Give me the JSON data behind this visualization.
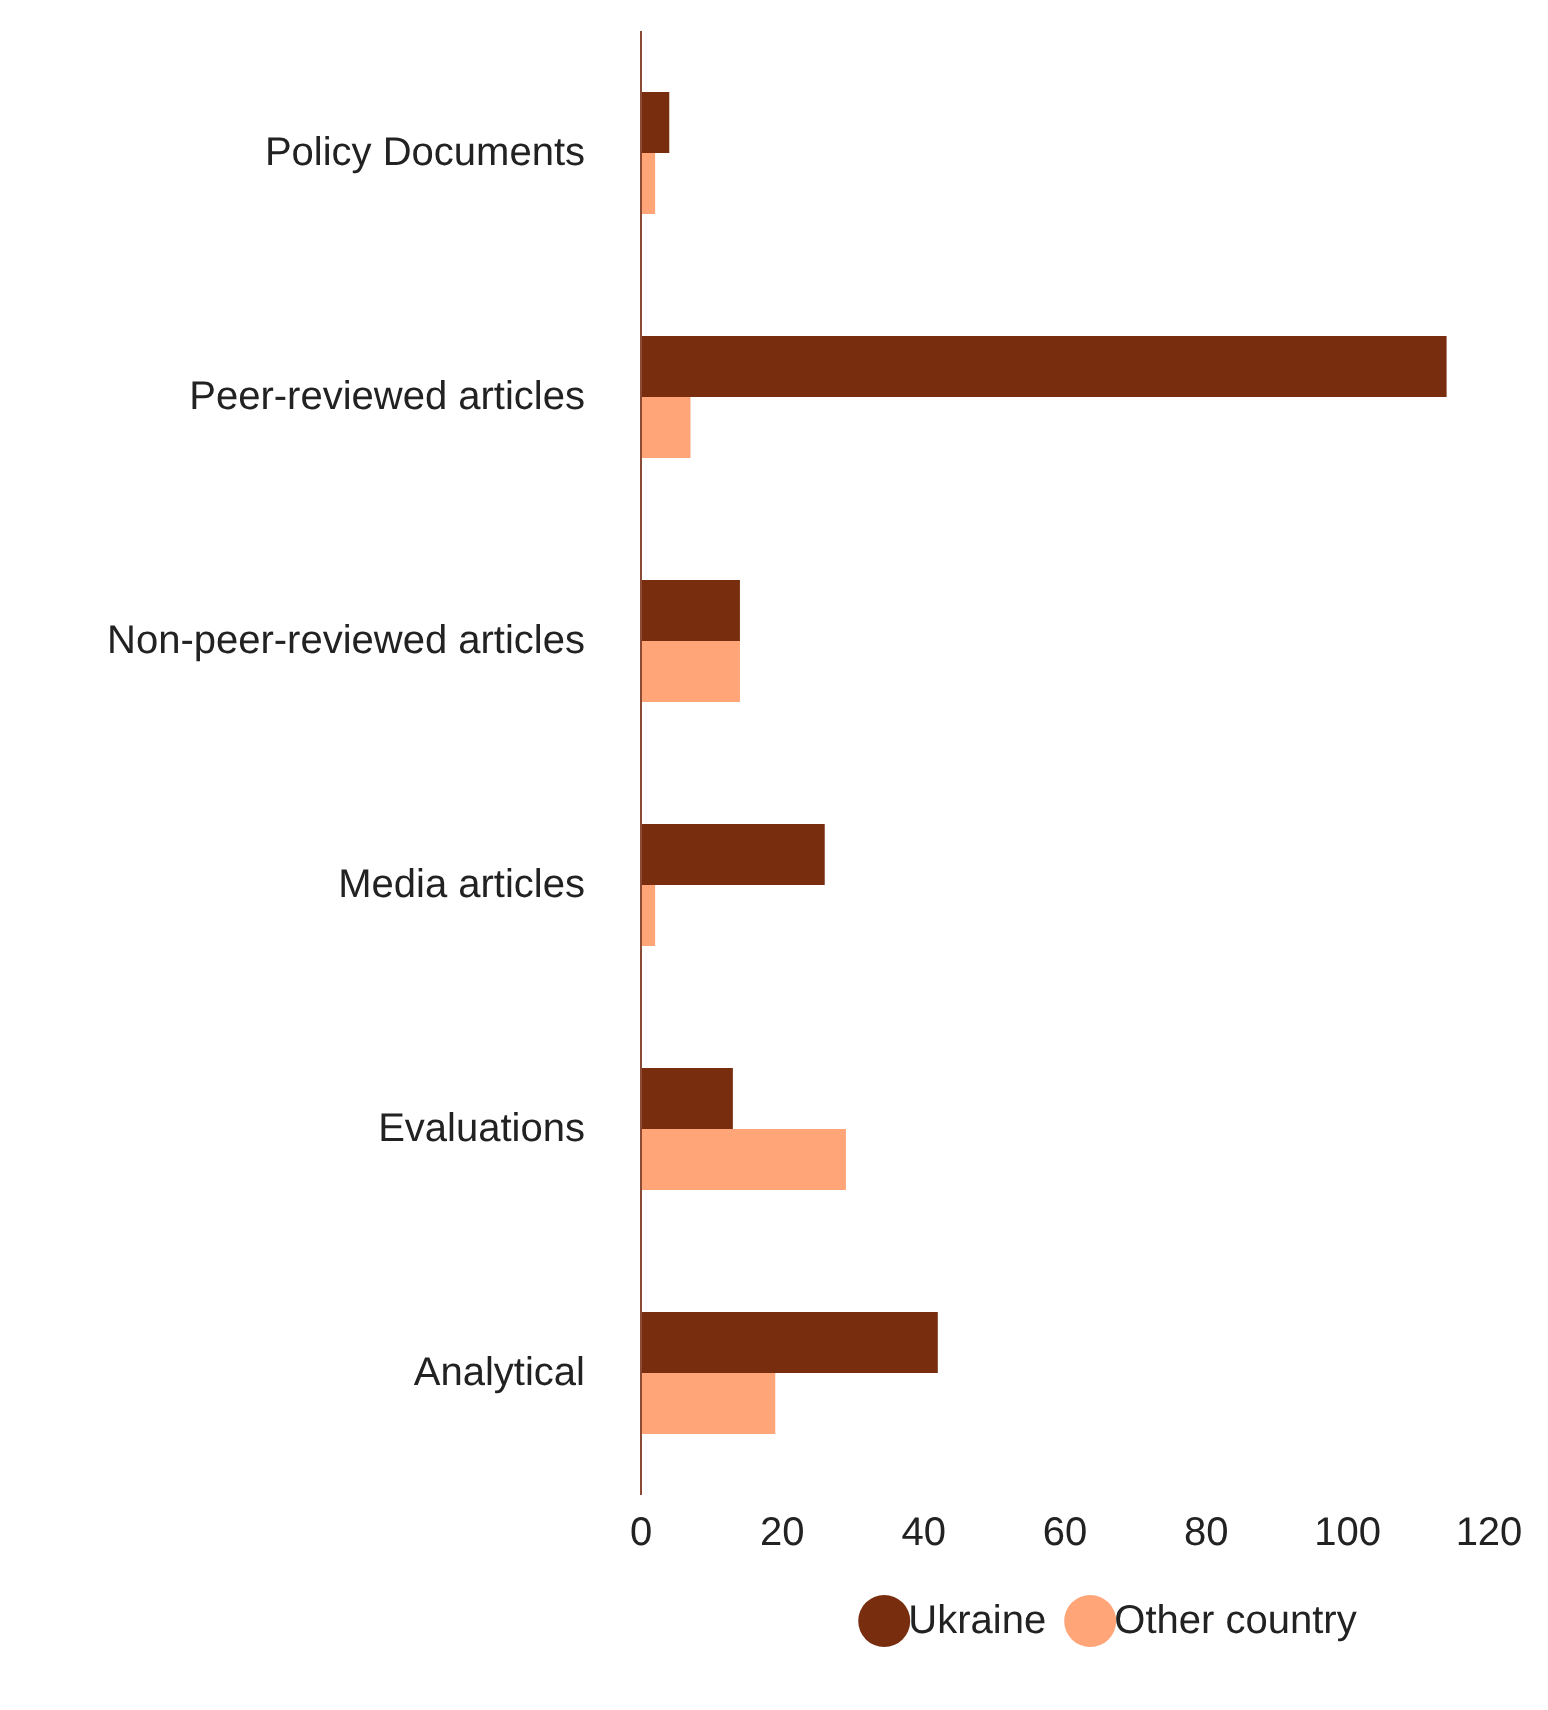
{
  "chart_data": {
    "type": "bar",
    "orientation": "horizontal",
    "categories": [
      "Policy Documents",
      "Peer-reviewed articles",
      "Non-peer-reviewed articles",
      "Media articles",
      "Evaluations",
      "Analytical"
    ],
    "series": [
      {
        "name": "Ukraine",
        "color": "#782d0f",
        "values": [
          4,
          114,
          14,
          26,
          13,
          42
        ]
      },
      {
        "name": "Other country",
        "color": "#ffa578",
        "values": [
          2,
          7,
          14,
          2,
          29,
          19
        ]
      }
    ],
    "xlim": [
      0,
      120
    ],
    "xticks": [
      0,
      20,
      40,
      60,
      80,
      100,
      120
    ],
    "grid": false,
    "legend": "bottom"
  }
}
